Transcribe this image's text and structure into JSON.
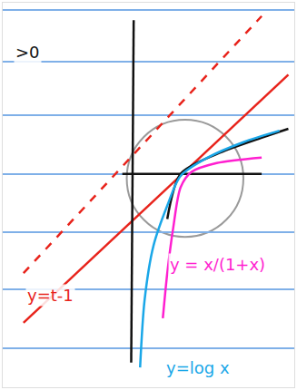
{
  "chart_data": {
    "type": "line",
    "xlim": [
      -2.6,
      3.3
    ],
    "ylim": [
      -4.3,
      3.45
    ],
    "yticks": [
      3.31,
      2.27,
      1.18,
      0,
      -1.18,
      -2.33,
      -3.51
    ],
    "xticks": [],
    "grid": "y",
    "tick_labels": false,
    "grid_color": "#7fb0e8",
    "series": [
      {
        "color": "#e8231b",
        "line_style": "solid",
        "x": [
          -2.18,
          3.18
        ],
        "values": [
          -3.0,
          2.0
        ]
      },
      {
        "color": "#e8231b",
        "line_style": "dash",
        "x": [
          -2.18,
          2.64
        ],
        "values": [
          -2.0,
          3.18
        ]
      },
      {
        "color": "#111111",
        "line_style": "solid",
        "x": [
          0.05,
          0.0
        ],
        "values": [
          3.1,
          -3.8
        ]
      },
      {
        "color": "#111111",
        "line_style": "solid",
        "x": [
          -0.18,
          2.64
        ],
        "values": [
          0,
          0
        ]
      },
      {
        "color": "#111111",
        "line_style": "solid",
        "x": [
          0.73,
          1.0,
          1.73,
          2.64,
          3.18
        ],
        "values": [
          -0.91,
          0,
          0.4,
          0.73,
          0.91
        ]
      },
      {
        "color": "#1aa7e8",
        "line_style": "solid",
        "x": [
          0.18,
          0.27,
          0.45,
          0.73,
          1.0,
          1.55,
          2.27,
          3.0
        ],
        "values": [
          -3.9,
          -2.55,
          -1.45,
          -0.64,
          -0.04,
          0.33,
          0.64,
          0.87
        ]
      },
      {
        "color": "#ff1fd0",
        "line_style": "solid",
        "x": [
          0.64,
          0.73,
          0.85,
          1.0,
          1.22,
          1.73,
          2.64
        ],
        "values": [
          -2.91,
          -2.0,
          -1.09,
          -0.27,
          0.04,
          0.22,
          0.33
        ]
      }
    ],
    "circle": {
      "color": "#9a9a9a",
      "xlim": [
        -0.09,
        2.27
      ],
      "ylim": [
        -1.27,
        1.09
      ]
    },
    "annotations": [
      {
        "text": ">0",
        "x": -2.09,
        "y": 2.45,
        "color": "#111111"
      },
      {
        "text": "y=t-1",
        "x": -1.64,
        "y": -2.45,
        "color": "#e8231b"
      },
      {
        "text": "y = x/(1+x)",
        "x": 1.75,
        "y": -1.82,
        "color": "#ff1fd0"
      },
      {
        "text": "y=log x",
        "x": 1.35,
        "y": -3.9,
        "color": "#1aa7e8"
      }
    ]
  }
}
